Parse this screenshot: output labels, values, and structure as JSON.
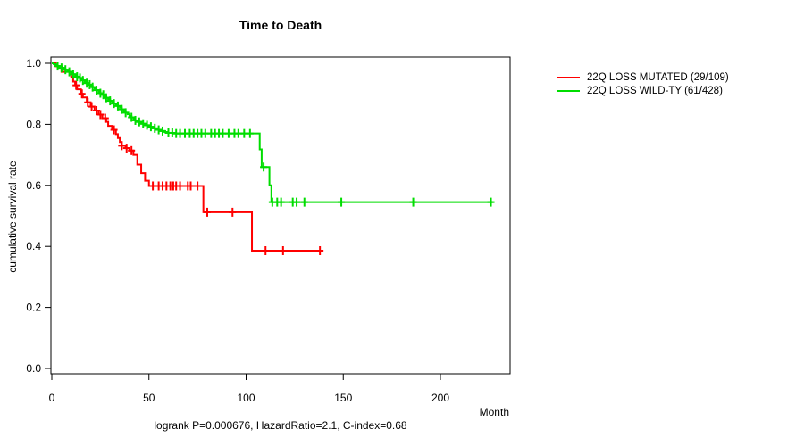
{
  "title": "Time to Death",
  "annotation": "logrank P=0.000676, HazardRatio=2.1, C-index=0.68",
  "axes": {
    "x": {
      "label": "Month",
      "ticks": [
        0,
        50,
        100,
        150,
        200
      ],
      "range": [
        0,
        236
      ]
    },
    "y": {
      "label": "cumulative survival rate",
      "ticks": [
        "0.0",
        "0.2",
        "0.4",
        "0.6",
        "0.8",
        "1.0"
      ],
      "tick_values": [
        0.0,
        0.2,
        0.4,
        0.6,
        0.8,
        1.0
      ],
      "range": [
        0,
        1.04
      ]
    }
  },
  "chart_data": {
    "type": "line",
    "subtype": "kaplan-meier-step",
    "title": "Time to Death",
    "xlabel": "Month",
    "ylabel": "cumulative survival rate",
    "xlim": [
      0,
      236
    ],
    "ylim": [
      0,
      1.04
    ],
    "grid": false,
    "legend_position": "right-outside",
    "series": [
      {
        "name": "22Q LOSS MUTATED (29/109)",
        "color": "#FF0000",
        "steps": [
          [
            0,
            1.0
          ],
          [
            2,
            0.99
          ],
          [
            5,
            0.972
          ],
          [
            10,
            0.955
          ],
          [
            11,
            0.94
          ],
          [
            12,
            0.928
          ],
          [
            13,
            0.915
          ],
          [
            15,
            0.9
          ],
          [
            16,
            0.888
          ],
          [
            18,
            0.872
          ],
          [
            20,
            0.858
          ],
          [
            22,
            0.845
          ],
          [
            24,
            0.832
          ],
          [
            26,
            0.82
          ],
          [
            28,
            0.808
          ],
          [
            29,
            0.795
          ],
          [
            31,
            0.782
          ],
          [
            33,
            0.768
          ],
          [
            34,
            0.755
          ],
          [
            35,
            0.742
          ],
          [
            36,
            0.73
          ],
          [
            38,
            0.722
          ],
          [
            40,
            0.714
          ],
          [
            42,
            0.7
          ],
          [
            44,
            0.668
          ],
          [
            46,
            0.64
          ],
          [
            48,
            0.615
          ],
          [
            50,
            0.598
          ],
          [
            78,
            0.512
          ],
          [
            103,
            0.386
          ]
        ],
        "end_time": 138,
        "censor_times": [
          12.5,
          15.5,
          18.5,
          20.5,
          23,
          25,
          27.5,
          32,
          36,
          38.5,
          41,
          52,
          55,
          57,
          59,
          61,
          62.5,
          64,
          66,
          70,
          71.5,
          75,
          80,
          93,
          110,
          119,
          138
        ]
      },
      {
        "name": "22Q LOSS WILD-TY (61/428)",
        "color": "#00DD00",
        "steps": [
          [
            0,
            1.0
          ],
          [
            1,
            0.997
          ],
          [
            2,
            0.994
          ],
          [
            3,
            0.991
          ],
          [
            4,
            0.988
          ],
          [
            5,
            0.985
          ],
          [
            6,
            0.982
          ],
          [
            7,
            0.979
          ],
          [
            8,
            0.976
          ],
          [
            9,
            0.972
          ],
          [
            10,
            0.968
          ],
          [
            11,
            0.964
          ],
          [
            12,
            0.96
          ],
          [
            13,
            0.956
          ],
          [
            14,
            0.952
          ],
          [
            15,
            0.948
          ],
          [
            16,
            0.944
          ],
          [
            17,
            0.94
          ],
          [
            18,
            0.935
          ],
          [
            19,
            0.93
          ],
          [
            20,
            0.926
          ],
          [
            21,
            0.922
          ],
          [
            22,
            0.917
          ],
          [
            23,
            0.912
          ],
          [
            24,
            0.907
          ],
          [
            25,
            0.902
          ],
          [
            26,
            0.897
          ],
          [
            27,
            0.892
          ],
          [
            28,
            0.887
          ],
          [
            29,
            0.882
          ],
          [
            30,
            0.877
          ],
          [
            31,
            0.872
          ],
          [
            32,
            0.868
          ],
          [
            33,
            0.864
          ],
          [
            34,
            0.86
          ],
          [
            35,
            0.855
          ],
          [
            36,
            0.849
          ],
          [
            37,
            0.843
          ],
          [
            38,
            0.838
          ],
          [
            39,
            0.833
          ],
          [
            40,
            0.828
          ],
          [
            41,
            0.823
          ],
          [
            42,
            0.818
          ],
          [
            43,
            0.813
          ],
          [
            44,
            0.808
          ],
          [
            46,
            0.802
          ],
          [
            48,
            0.797
          ],
          [
            50,
            0.792
          ],
          [
            52,
            0.787
          ],
          [
            54,
            0.782
          ],
          [
            56,
            0.778
          ],
          [
            58,
            0.775
          ],
          [
            60,
            0.772
          ],
          [
            63,
            0.77
          ],
          [
            107,
            0.718
          ],
          [
            108,
            0.66
          ],
          [
            112,
            0.6
          ],
          [
            113,
            0.545
          ]
        ],
        "end_time": 227,
        "censor_times": [
          3,
          5,
          7,
          9,
          11,
          13,
          14.5,
          16,
          18,
          19.5,
          21,
          23,
          25,
          26.5,
          28,
          30,
          32,
          34,
          36,
          38,
          41,
          43,
          45,
          47,
          49,
          51,
          53,
          55,
          57,
          60,
          62,
          64,
          66,
          68.5,
          71,
          73,
          75,
          77,
          79,
          82,
          84,
          86,
          88,
          91,
          94,
          96,
          99,
          102,
          109,
          113.5,
          116,
          118,
          124,
          126,
          130,
          149,
          186,
          226
        ]
      }
    ]
  }
}
